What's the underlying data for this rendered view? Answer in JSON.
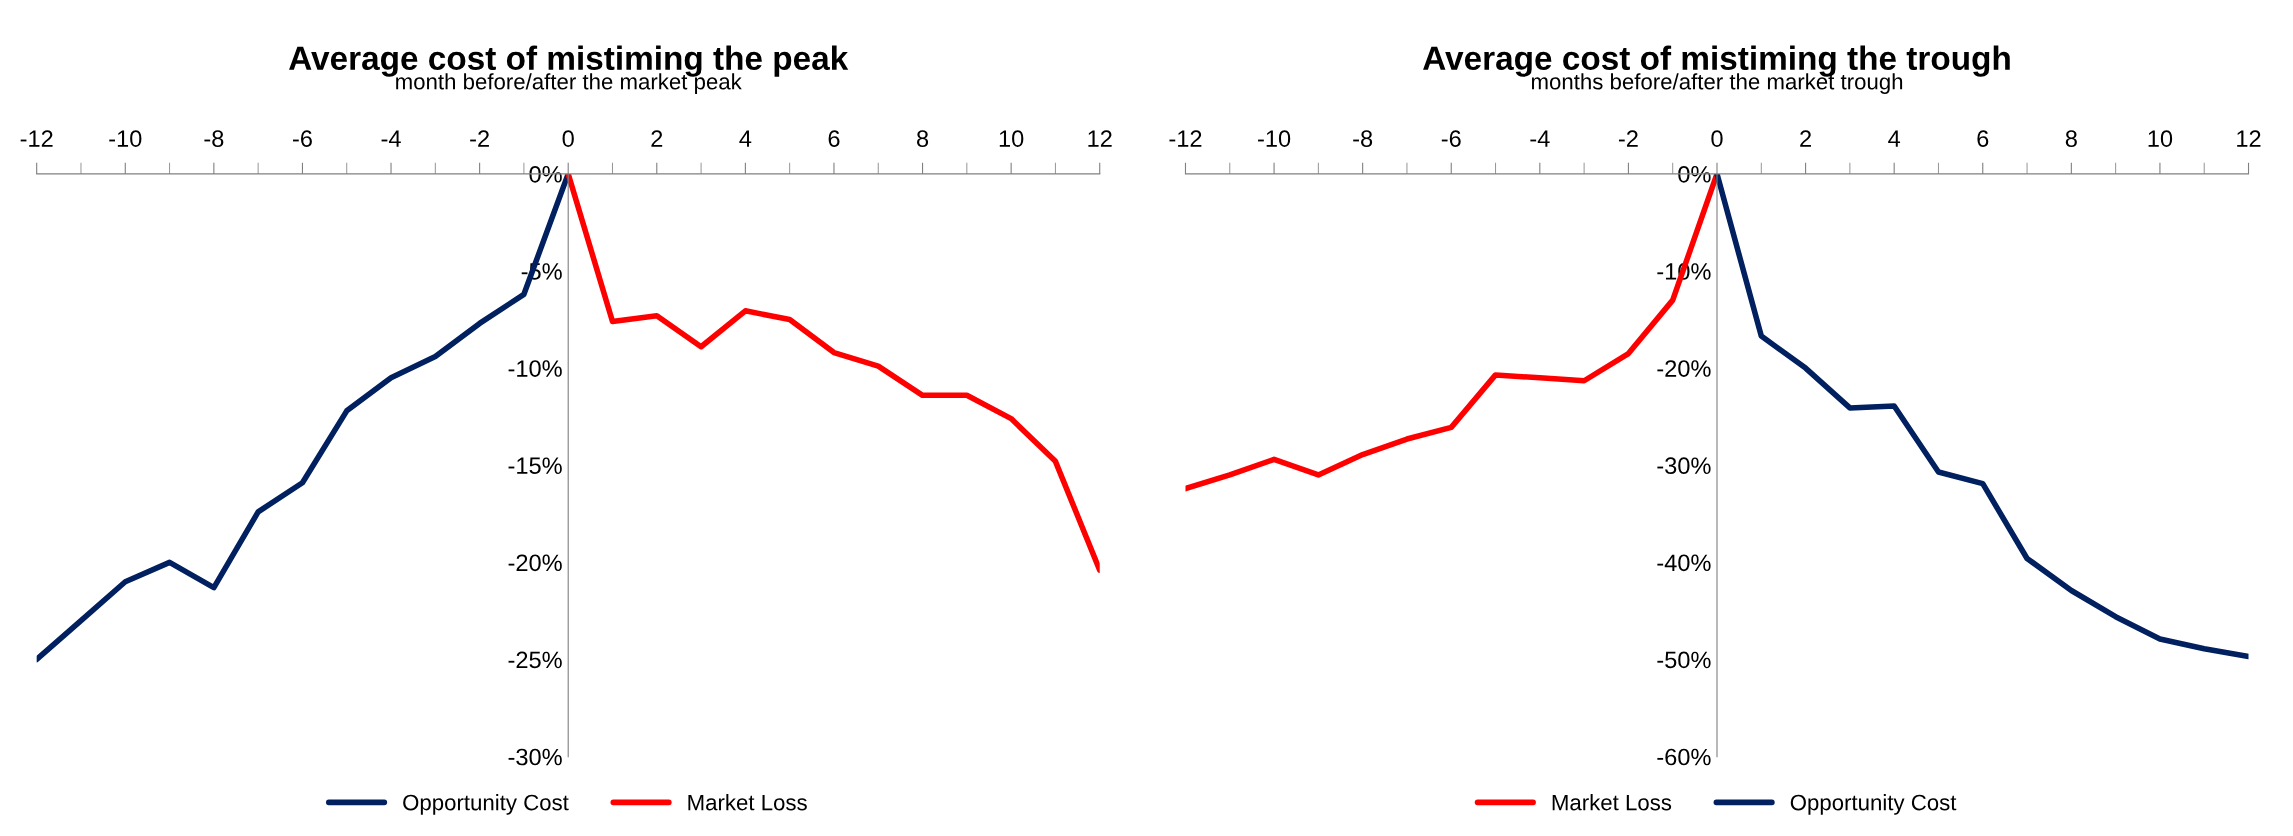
{
  "chart_data": [
    {
      "type": "line",
      "title": "Average cost of mistiming the peak",
      "subtitle": "month before/after the market peak",
      "xlim": [
        -12,
        12
      ],
      "ylim": [
        -30,
        0
      ],
      "xticks": [
        -12,
        {
          "value": -11,
          "label": null
        },
        -10,
        {
          "value": -9,
          "label": null
        },
        -8,
        {
          "value": -7,
          "label": null
        },
        -6,
        {
          "value": -5,
          "label": null
        },
        -4,
        {
          "value": -3,
          "label": null
        },
        -2,
        {
          "value": -1,
          "label": null
        },
        0,
        {
          "value": 1,
          "label": null
        },
        2,
        {
          "value": 3,
          "label": null
        },
        4,
        {
          "value": 5,
          "label": null
        },
        6,
        {
          "value": 7,
          "label": null
        },
        8,
        {
          "value": 9,
          "label": null
        },
        10,
        {
          "value": 11,
          "label": null
        },
        12
      ],
      "yticks": [
        {
          "value": 0,
          "label": "0%"
        },
        {
          "value": -5,
          "label": "-5%"
        },
        {
          "value": -10,
          "label": "-10%"
        },
        {
          "value": -15,
          "label": "-15%"
        },
        {
          "value": -20,
          "label": "-20%"
        },
        {
          "value": -25,
          "label": "-25%"
        },
        {
          "value": -30,
          "label": "-30%"
        }
      ],
      "grid": false,
      "legend": "bottom",
      "line_style": "solid",
      "marker": "none",
      "series": [
        {
          "name": "Opportunity Cost",
          "color": "#002060",
          "x": [
            -12,
            -11,
            -10,
            -9,
            -8,
            -7,
            -6,
            -5,
            -4,
            -3,
            -2,
            -1,
            0
          ],
          "values": [
            -25.0,
            -23.0,
            -21.0,
            -20.0,
            -21.3,
            -17.4,
            -15.9,
            -12.2,
            -10.5,
            -9.4,
            -7.7,
            -6.2,
            0
          ]
        },
        {
          "name": "Market Loss",
          "color": "#ff0000",
          "x": [
            0,
            1,
            2,
            3,
            4,
            5,
            6,
            7,
            8,
            9,
            10,
            11,
            12
          ],
          "values": [
            0,
            -7.6,
            -7.3,
            -8.9,
            -7.05,
            -7.5,
            -9.2,
            -9.9,
            -11.4,
            -11.4,
            -12.6,
            -14.8,
            -20.4
          ]
        }
      ]
    },
    {
      "type": "line",
      "title": "Average cost of mistiming the trough",
      "subtitle": "months before/after the market trough",
      "xlim": [
        -12,
        12
      ],
      "ylim": [
        -60,
        0
      ],
      "xticks": [
        -12,
        {
          "value": -11,
          "label": null
        },
        -10,
        {
          "value": -9,
          "label": null
        },
        -8,
        {
          "value": -7,
          "label": null
        },
        -6,
        {
          "value": -5,
          "label": null
        },
        -4,
        {
          "value": -3,
          "label": null
        },
        -2,
        {
          "value": -1,
          "label": null
        },
        0,
        {
          "value": 1,
          "label": null
        },
        2,
        {
          "value": 3,
          "label": null
        },
        4,
        {
          "value": 5,
          "label": null
        },
        6,
        {
          "value": 7,
          "label": null
        },
        8,
        {
          "value": 9,
          "label": null
        },
        10,
        {
          "value": 11,
          "label": null
        },
        12
      ],
      "yticks": [
        {
          "value": 0,
          "label": "0%"
        },
        {
          "value": -10,
          "label": "-10%"
        },
        {
          "value": -20,
          "label": "-20%"
        },
        {
          "value": -30,
          "label": "-30%"
        },
        {
          "value": -40,
          "label": "-40%"
        },
        {
          "value": -50,
          "label": "-50%"
        },
        {
          "value": -60,
          "label": "-60%"
        }
      ],
      "grid": false,
      "legend": "bottom",
      "line_style": "solid",
      "marker": "none",
      "series": [
        {
          "name": "Market Loss",
          "color": "#ff0000",
          "x": [
            -12,
            -11,
            -10,
            -9,
            -8,
            -7,
            -6,
            -5,
            -4,
            -3,
            -2,
            -1,
            0
          ],
          "values": [
            -32.4,
            -31.0,
            -29.4,
            -31.0,
            -28.9,
            -27.3,
            -26.1,
            -20.7,
            -21.0,
            -21.3,
            -18.5,
            -13.0,
            0
          ]
        },
        {
          "name": "Opportunity Cost",
          "color": "#002060",
          "x": [
            0,
            1,
            2,
            3,
            4,
            5,
            6,
            7,
            8,
            9,
            10,
            11,
            12
          ],
          "values": [
            0,
            -16.7,
            -20.0,
            -24.1,
            -23.9,
            -30.7,
            -31.9,
            -39.6,
            -42.9,
            -45.6,
            -47.9,
            -48.9,
            -49.7
          ]
        }
      ]
    }
  ]
}
